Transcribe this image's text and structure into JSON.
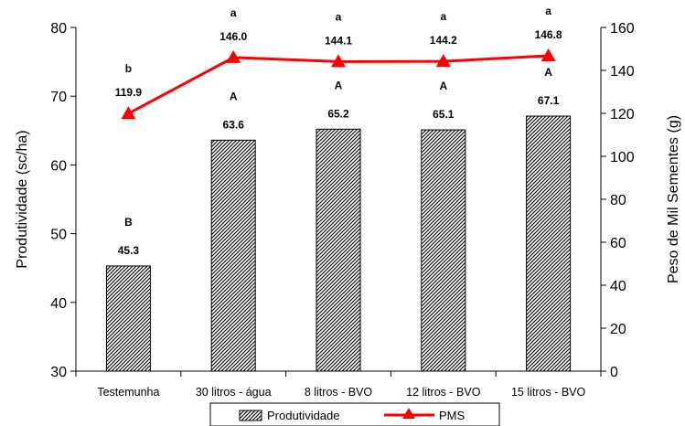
{
  "chart_data": {
    "type": "bar",
    "categories": [
      "Testemunha",
      "30 litros - água",
      "8 litros - BVO",
      "12 litros - BVO",
      "15 litros - BVO"
    ],
    "series": [
      {
        "name": "Produtividade",
        "type": "bar",
        "axis": "left",
        "values": [
          45.3,
          63.6,
          65.2,
          65.1,
          67.1
        ],
        "letters": [
          "B",
          "A",
          "A",
          "A",
          "A"
        ]
      },
      {
        "name": "PMS",
        "type": "line",
        "axis": "right",
        "values": [
          119.9,
          146.0,
          144.1,
          144.2,
          146.8
        ],
        "letters": [
          "b",
          "a",
          "a",
          "a",
          "a"
        ],
        "color": "#ff0000"
      }
    ],
    "title": "",
    "xlabel": "",
    "ylabel": "Produtividade (sc/ha)",
    "y2label": "Peso de Mil Sementes (g)",
    "ylim": [
      30,
      80
    ],
    "yticks": [
      30,
      40,
      50,
      60,
      70,
      80
    ],
    "y2lim": [
      0,
      160
    ],
    "y2ticks": [
      0,
      20,
      40,
      60,
      80,
      100,
      120,
      140,
      160
    ],
    "grid": false,
    "legend_position": "bottom"
  }
}
